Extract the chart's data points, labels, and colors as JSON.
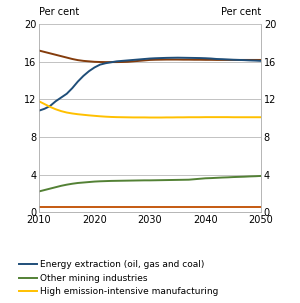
{
  "xlim": [
    2010,
    2050
  ],
  "ylim": [
    0,
    20
  ],
  "yticks": [
    0,
    4,
    8,
    12,
    16,
    20
  ],
  "xticks": [
    2010,
    2020,
    2030,
    2040,
    2050
  ],
  "ylabel_text": "Per cent",
  "series": {
    "energy_extraction": {
      "label": "Energy extraction (oil, gas and coal)",
      "color": "#1f4e79",
      "years": [
        2010,
        2011,
        2012,
        2013,
        2014,
        2015,
        2016,
        2017,
        2018,
        2019,
        2020,
        2021,
        2022,
        2023,
        2024,
        2025,
        2026,
        2027,
        2028,
        2029,
        2030,
        2031,
        2032,
        2033,
        2034,
        2035,
        2036,
        2037,
        2038,
        2039,
        2040,
        2041,
        2042,
        2043,
        2044,
        2045,
        2046,
        2047,
        2048,
        2049,
        2050
      ],
      "values": [
        10.8,
        11.0,
        11.3,
        11.8,
        12.2,
        12.6,
        13.2,
        13.9,
        14.5,
        15.0,
        15.4,
        15.7,
        15.85,
        15.95,
        16.05,
        16.1,
        16.15,
        16.2,
        16.25,
        16.3,
        16.35,
        16.38,
        16.4,
        16.42,
        16.43,
        16.44,
        16.43,
        16.42,
        16.41,
        16.4,
        16.38,
        16.35,
        16.3,
        16.28,
        16.25,
        16.22,
        16.2,
        16.18,
        16.15,
        16.13,
        16.1
      ]
    },
    "other_mining": {
      "label": "Other mining industries",
      "color": "#538135",
      "years": [
        2010,
        2011,
        2012,
        2013,
        2014,
        2015,
        2016,
        2017,
        2018,
        2019,
        2020,
        2021,
        2022,
        2023,
        2024,
        2025,
        2026,
        2027,
        2028,
        2029,
        2030,
        2031,
        2032,
        2033,
        2034,
        2035,
        2036,
        2037,
        2038,
        2039,
        2040,
        2041,
        2042,
        2043,
        2044,
        2045,
        2046,
        2047,
        2048,
        2049,
        2050
      ],
      "values": [
        2.2,
        2.35,
        2.5,
        2.65,
        2.8,
        2.92,
        3.02,
        3.1,
        3.15,
        3.2,
        3.25,
        3.28,
        3.3,
        3.32,
        3.33,
        3.34,
        3.35,
        3.36,
        3.37,
        3.38,
        3.38,
        3.39,
        3.4,
        3.41,
        3.42,
        3.43,
        3.44,
        3.45,
        3.5,
        3.55,
        3.6,
        3.62,
        3.65,
        3.68,
        3.7,
        3.73,
        3.75,
        3.77,
        3.8,
        3.82,
        3.85
      ]
    },
    "high_emission": {
      "label": "High emission-intensive manufacturing",
      "color": "#ffc000",
      "years": [
        2010,
        2011,
        2012,
        2013,
        2014,
        2015,
        2016,
        2017,
        2018,
        2019,
        2020,
        2021,
        2022,
        2023,
        2024,
        2025,
        2026,
        2027,
        2028,
        2029,
        2030,
        2031,
        2032,
        2033,
        2034,
        2035,
        2036,
        2037,
        2038,
        2039,
        2040,
        2041,
        2042,
        2043,
        2044,
        2045,
        2046,
        2047,
        2048,
        2049,
        2050
      ],
      "values": [
        11.8,
        11.5,
        11.2,
        10.95,
        10.75,
        10.6,
        10.5,
        10.42,
        10.36,
        10.3,
        10.25,
        10.2,
        10.16,
        10.13,
        10.11,
        10.1,
        10.09,
        10.08,
        10.08,
        10.08,
        10.07,
        10.07,
        10.07,
        10.08,
        10.08,
        10.09,
        10.09,
        10.1,
        10.1,
        10.1,
        10.11,
        10.11,
        10.11,
        10.11,
        10.11,
        10.1,
        10.1,
        10.1,
        10.1,
        10.1,
        10.1
      ]
    },
    "low_emission_mfg": {
      "color": "#843c0c",
      "years": [
        2010,
        2011,
        2012,
        2013,
        2014,
        2015,
        2016,
        2017,
        2018,
        2019,
        2020,
        2021,
        2022,
        2023,
        2024,
        2025,
        2026,
        2027,
        2028,
        2029,
        2030,
        2031,
        2032,
        2033,
        2034,
        2035,
        2036,
        2037,
        2038,
        2039,
        2040,
        2041,
        2042,
        2043,
        2044,
        2045,
        2046,
        2047,
        2048,
        2049,
        2050
      ],
      "values": [
        17.2,
        17.05,
        16.9,
        16.75,
        16.6,
        16.45,
        16.3,
        16.18,
        16.1,
        16.05,
        16.0,
        15.98,
        15.97,
        15.97,
        15.97,
        15.98,
        16.0,
        16.05,
        16.1,
        16.15,
        16.2,
        16.22,
        16.23,
        16.24,
        16.24,
        16.24,
        16.23,
        16.23,
        16.22,
        16.22,
        16.21,
        16.21,
        16.2,
        16.2,
        16.2,
        16.2,
        16.2,
        16.2,
        16.2,
        16.2,
        16.2
      ]
    },
    "near_zero": {
      "color": "#c55a11",
      "years": [
        2010,
        2011,
        2012,
        2013,
        2014,
        2015,
        2016,
        2017,
        2018,
        2019,
        2020,
        2021,
        2022,
        2023,
        2024,
        2025,
        2026,
        2027,
        2028,
        2029,
        2030,
        2031,
        2032,
        2033,
        2034,
        2035,
        2036,
        2037,
        2038,
        2039,
        2040,
        2041,
        2042,
        2043,
        2044,
        2045,
        2046,
        2047,
        2048,
        2049,
        2050
      ],
      "values": [
        0.55,
        0.55,
        0.55,
        0.55,
        0.55,
        0.55,
        0.55,
        0.55,
        0.55,
        0.55,
        0.55,
        0.55,
        0.55,
        0.55,
        0.55,
        0.55,
        0.55,
        0.55,
        0.55,
        0.55,
        0.55,
        0.55,
        0.55,
        0.55,
        0.55,
        0.55,
        0.55,
        0.55,
        0.55,
        0.55,
        0.55,
        0.55,
        0.55,
        0.55,
        0.55,
        0.55,
        0.55,
        0.55,
        0.55,
        0.55,
        0.55
      ]
    }
  },
  "legend_items": [
    {
      "label": "Energy extraction (oil, gas and coal)",
      "color": "#1f4e79"
    },
    {
      "label": "Other mining industries",
      "color": "#538135"
    },
    {
      "label": "High emission-intensive manufacturing",
      "color": "#ffc000"
    }
  ],
  "linewidth": 1.4,
  "grid_color": "#aaaaaa",
  "spine_color": "#aaaaaa"
}
